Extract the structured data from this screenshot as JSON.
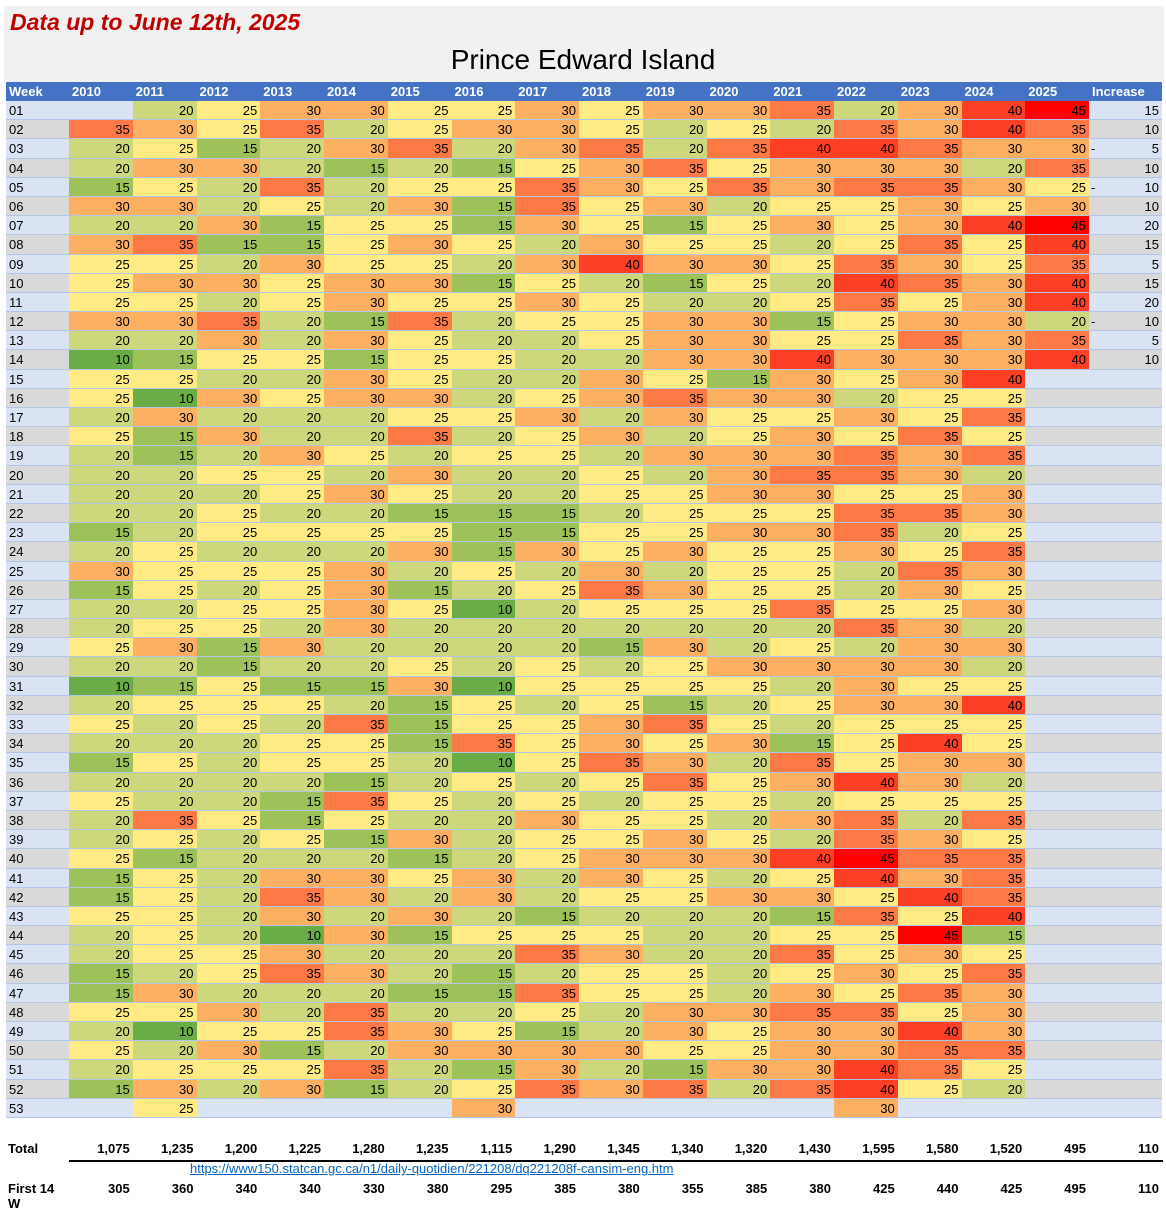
{
  "subtitle": "Data up to June 12th, 2025",
  "title": "Prince Edward Island",
  "headers": [
    "Week",
    "2010",
    "2011",
    "2012",
    "2013",
    "2014",
    "2015",
    "2016",
    "2017",
    "2018",
    "2019",
    "2020",
    "2021",
    "2022",
    "2023",
    "2024",
    "2025",
    "Increase"
  ],
  "colors": {
    "10": "#6aac46",
    "15": "#9dc25a",
    "20": "#ccd87b",
    "25": "#ffea84",
    "30": "#fdaf62",
    "35": "#fd7a46",
    "40": "#fd3f25",
    "45": "#ff0000"
  },
  "rows": [
    {
      "week": "01",
      "v": [
        null,
        20,
        25,
        30,
        30,
        25,
        25,
        30,
        25,
        30,
        30,
        35,
        20,
        30,
        40,
        45
      ],
      "inc": 15
    },
    {
      "week": "02",
      "v": [
        35,
        30,
        25,
        35,
        20,
        25,
        30,
        30,
        25,
        20,
        25,
        20,
        35,
        30,
        40,
        35
      ],
      "inc": 10
    },
    {
      "week": "03",
      "v": [
        20,
        25,
        15,
        20,
        30,
        35,
        20,
        30,
        35,
        20,
        35,
        40,
        40,
        35,
        30,
        30
      ],
      "inc": -5
    },
    {
      "week": "04",
      "v": [
        20,
        30,
        30,
        20,
        15,
        20,
        15,
        25,
        30,
        35,
        25,
        30,
        30,
        30,
        20,
        35
      ],
      "inc": 10
    },
    {
      "week": "05",
      "v": [
        15,
        25,
        20,
        35,
        20,
        25,
        25,
        35,
        30,
        25,
        35,
        30,
        35,
        35,
        30,
        25
      ],
      "inc": -10
    },
    {
      "week": "06",
      "v": [
        30,
        30,
        20,
        25,
        20,
        30,
        15,
        35,
        25,
        30,
        20,
        25,
        25,
        30,
        25,
        30
      ],
      "inc": 10
    },
    {
      "week": "07",
      "v": [
        20,
        20,
        30,
        15,
        25,
        25,
        15,
        30,
        25,
        15,
        25,
        30,
        25,
        30,
        40,
        45
      ],
      "inc": 20
    },
    {
      "week": "08",
      "v": [
        30,
        35,
        15,
        15,
        25,
        30,
        25,
        20,
        30,
        25,
        25,
        20,
        25,
        35,
        25,
        40
      ],
      "inc": 15
    },
    {
      "week": "09",
      "v": [
        25,
        25,
        20,
        30,
        25,
        25,
        20,
        30,
        40,
        30,
        30,
        25,
        35,
        30,
        25,
        35
      ],
      "inc": 5
    },
    {
      "week": "10",
      "v": [
        25,
        30,
        30,
        25,
        30,
        30,
        15,
        25,
        20,
        15,
        25,
        20,
        40,
        35,
        30,
        40
      ],
      "inc": 15
    },
    {
      "week": "11",
      "v": [
        25,
        25,
        20,
        25,
        30,
        25,
        25,
        30,
        25,
        20,
        20,
        25,
        35,
        25,
        30,
        40
      ],
      "inc": 20
    },
    {
      "week": "12",
      "v": [
        30,
        30,
        35,
        20,
        15,
        35,
        20,
        25,
        25,
        30,
        30,
        15,
        25,
        30,
        30,
        20
      ],
      "inc": -10
    },
    {
      "week": "13",
      "v": [
        20,
        20,
        30,
        20,
        30,
        25,
        20,
        20,
        25,
        30,
        30,
        25,
        25,
        35,
        30,
        35
      ],
      "inc": 5
    },
    {
      "week": "14",
      "v": [
        10,
        15,
        25,
        25,
        15,
        25,
        25,
        20,
        20,
        30,
        30,
        40,
        30,
        30,
        30,
        40
      ],
      "inc": 10
    },
    {
      "week": "15",
      "v": [
        25,
        25,
        20,
        20,
        30,
        25,
        20,
        20,
        30,
        25,
        15,
        30,
        25,
        30,
        40,
        null
      ],
      "inc": null
    },
    {
      "week": "16",
      "v": [
        25,
        10,
        30,
        25,
        30,
        30,
        20,
        25,
        30,
        35,
        30,
        30,
        20,
        25,
        25,
        null
      ],
      "inc": null
    },
    {
      "week": "17",
      "v": [
        20,
        30,
        20,
        20,
        20,
        25,
        25,
        30,
        20,
        30,
        25,
        25,
        30,
        25,
        35,
        null
      ],
      "inc": null
    },
    {
      "week": "18",
      "v": [
        25,
        15,
        30,
        20,
        20,
        35,
        20,
        25,
        30,
        20,
        25,
        30,
        25,
        35,
        25,
        null
      ],
      "inc": null
    },
    {
      "week": "19",
      "v": [
        20,
        15,
        20,
        30,
        25,
        20,
        25,
        25,
        20,
        30,
        30,
        30,
        35,
        30,
        35,
        null
      ],
      "inc": null
    },
    {
      "week": "20",
      "v": [
        20,
        20,
        25,
        25,
        20,
        30,
        20,
        20,
        25,
        20,
        30,
        35,
        35,
        30,
        20,
        null
      ],
      "inc": null
    },
    {
      "week": "21",
      "v": [
        20,
        20,
        20,
        25,
        30,
        25,
        20,
        20,
        25,
        25,
        30,
        30,
        25,
        25,
        30,
        null
      ],
      "inc": null
    },
    {
      "week": "22",
      "v": [
        20,
        20,
        25,
        20,
        20,
        15,
        15,
        15,
        20,
        25,
        25,
        25,
        35,
        35,
        30,
        null
      ],
      "inc": null
    },
    {
      "week": "23",
      "v": [
        15,
        20,
        25,
        25,
        25,
        25,
        15,
        15,
        25,
        25,
        30,
        30,
        35,
        20,
        25,
        null
      ],
      "inc": null
    },
    {
      "week": "24",
      "v": [
        20,
        25,
        20,
        20,
        20,
        30,
        15,
        30,
        25,
        30,
        25,
        25,
        30,
        25,
        35,
        null
      ],
      "inc": null
    },
    {
      "week": "25",
      "v": [
        30,
        25,
        25,
        25,
        30,
        20,
        25,
        20,
        30,
        20,
        25,
        25,
        20,
        35,
        30,
        null
      ],
      "inc": null
    },
    {
      "week": "26",
      "v": [
        15,
        25,
        20,
        25,
        30,
        15,
        20,
        25,
        35,
        30,
        25,
        25,
        20,
        30,
        25,
        null
      ],
      "inc": null
    },
    {
      "week": "27",
      "v": [
        20,
        20,
        25,
        25,
        30,
        25,
        10,
        20,
        25,
        25,
        25,
        35,
        25,
        25,
        30,
        null
      ],
      "inc": null
    },
    {
      "week": "28",
      "v": [
        20,
        25,
        25,
        20,
        30,
        20,
        20,
        20,
        20,
        20,
        20,
        20,
        35,
        30,
        20,
        null
      ],
      "inc": null
    },
    {
      "week": "29",
      "v": [
        25,
        30,
        15,
        30,
        20,
        20,
        20,
        20,
        15,
        30,
        20,
        25,
        20,
        30,
        30,
        null
      ],
      "inc": null
    },
    {
      "week": "30",
      "v": [
        20,
        20,
        15,
        20,
        20,
        25,
        20,
        25,
        20,
        25,
        30,
        30,
        30,
        30,
        20,
        null
      ],
      "inc": null
    },
    {
      "week": "31",
      "v": [
        10,
        15,
        25,
        15,
        15,
        30,
        10,
        25,
        25,
        25,
        25,
        20,
        30,
        25,
        25,
        null
      ],
      "inc": null
    },
    {
      "week": "32",
      "v": [
        20,
        25,
        25,
        25,
        20,
        15,
        25,
        20,
        25,
        15,
        20,
        25,
        30,
        30,
        40,
        null
      ],
      "inc": null
    },
    {
      "week": "33",
      "v": [
        25,
        20,
        25,
        20,
        35,
        15,
        25,
        25,
        30,
        35,
        25,
        20,
        25,
        25,
        25,
        null
      ],
      "inc": null
    },
    {
      "week": "34",
      "v": [
        20,
        20,
        20,
        25,
        25,
        15,
        35,
        25,
        30,
        25,
        30,
        15,
        25,
        40,
        25,
        null
      ],
      "inc": null
    },
    {
      "week": "35",
      "v": [
        15,
        25,
        20,
        25,
        25,
        20,
        10,
        25,
        35,
        30,
        20,
        35,
        25,
        30,
        30,
        null
      ],
      "inc": null
    },
    {
      "week": "36",
      "v": [
        20,
        20,
        20,
        20,
        15,
        20,
        25,
        20,
        25,
        35,
        25,
        30,
        40,
        30,
        20,
        null
      ],
      "inc": null
    },
    {
      "week": "37",
      "v": [
        25,
        20,
        20,
        15,
        35,
        25,
        20,
        25,
        20,
        25,
        25,
        20,
        25,
        25,
        25,
        null
      ],
      "inc": null
    },
    {
      "week": "38",
      "v": [
        20,
        35,
        25,
        15,
        25,
        20,
        20,
        30,
        25,
        25,
        20,
        30,
        35,
        20,
        35,
        null
      ],
      "inc": null
    },
    {
      "week": "39",
      "v": [
        20,
        25,
        20,
        25,
        15,
        30,
        20,
        25,
        25,
        30,
        25,
        20,
        35,
        30,
        25,
        null
      ],
      "inc": null
    },
    {
      "week": "40",
      "v": [
        25,
        15,
        20,
        20,
        20,
        15,
        20,
        25,
        30,
        30,
        30,
        40,
        45,
        35,
        35,
        null
      ],
      "inc": null
    },
    {
      "week": "41",
      "v": [
        15,
        25,
        20,
        30,
        30,
        25,
        30,
        20,
        30,
        25,
        20,
        25,
        40,
        30,
        35,
        null
      ],
      "inc": null
    },
    {
      "week": "42",
      "v": [
        15,
        25,
        20,
        35,
        30,
        20,
        30,
        20,
        25,
        25,
        30,
        30,
        25,
        40,
        35,
        null
      ],
      "inc": null
    },
    {
      "week": "43",
      "v": [
        25,
        25,
        20,
        30,
        20,
        30,
        20,
        15,
        20,
        20,
        20,
        15,
        35,
        25,
        40,
        null
      ],
      "inc": null
    },
    {
      "week": "44",
      "v": [
        20,
        25,
        20,
        10,
        30,
        15,
        25,
        25,
        25,
        20,
        20,
        25,
        25,
        45,
        15,
        null
      ],
      "inc": null
    },
    {
      "week": "45",
      "v": [
        20,
        25,
        25,
        30,
        20,
        20,
        20,
        35,
        30,
        20,
        20,
        35,
        25,
        30,
        25,
        null
      ],
      "inc": null
    },
    {
      "week": "46",
      "v": [
        15,
        20,
        25,
        35,
        30,
        20,
        15,
        20,
        25,
        25,
        20,
        25,
        30,
        25,
        35,
        null
      ],
      "inc": null
    },
    {
      "week": "47",
      "v": [
        15,
        30,
        20,
        20,
        20,
        15,
        15,
        35,
        25,
        25,
        20,
        30,
        25,
        35,
        30,
        null
      ],
      "inc": null
    },
    {
      "week": "48",
      "v": [
        25,
        25,
        30,
        20,
        35,
        20,
        20,
        25,
        20,
        30,
        30,
        35,
        35,
        25,
        30,
        null
      ],
      "inc": null
    },
    {
      "week": "49",
      "v": [
        20,
        10,
        25,
        25,
        35,
        30,
        25,
        15,
        20,
        30,
        25,
        30,
        30,
        40,
        30,
        null
      ],
      "inc": null
    },
    {
      "week": "50",
      "v": [
        25,
        20,
        30,
        15,
        20,
        30,
        30,
        30,
        30,
        25,
        25,
        30,
        30,
        35,
        35,
        null
      ],
      "inc": null
    },
    {
      "week": "51",
      "v": [
        20,
        25,
        25,
        25,
        35,
        20,
        15,
        30,
        20,
        15,
        30,
        30,
        40,
        35,
        25,
        null
      ],
      "inc": null
    },
    {
      "week": "52",
      "v": [
        15,
        30,
        20,
        30,
        15,
        20,
        25,
        35,
        30,
        35,
        20,
        35,
        40,
        25,
        20,
        null
      ],
      "inc": null
    },
    {
      "week": "53",
      "v": [
        null,
        25,
        null,
        null,
        null,
        null,
        30,
        null,
        null,
        null,
        null,
        null,
        30,
        null,
        null,
        null
      ],
      "inc": null
    }
  ],
  "total": {
    "label": "Total",
    "values": [
      "1,075",
      "1,235",
      "1,200",
      "1,225",
      "1,280",
      "1,235",
      "1,115",
      "1,290",
      "1,345",
      "1,340",
      "1,320",
      "1,430",
      "1,595",
      "1,580",
      "1,520",
      "495",
      "110"
    ]
  },
  "link": "https://www150.statcan.gc.ca/n1/daily-quotidien/221208/dq221208f-cansim-eng.htm",
  "first14": {
    "label": "First 14 W",
    "values": [
      "305",
      "360",
      "340",
      "340",
      "330",
      "380",
      "295",
      "385",
      "380",
      "355",
      "385",
      "380",
      "425",
      "440",
      "425",
      "495",
      "110"
    ]
  }
}
